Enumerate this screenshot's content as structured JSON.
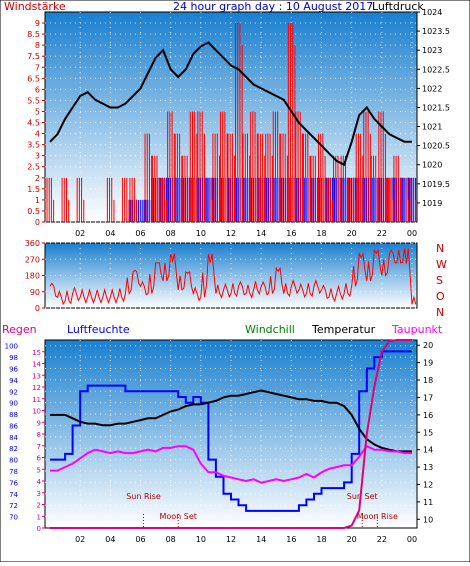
{
  "colors": {
    "wind": "#ff0000",
    "pressure": "#000000",
    "direction": "#ff0000",
    "gust_blue": "#0000ff",
    "rain_title": "#e0007a",
    "humidity": "#0000ff",
    "windchill": "#008000",
    "temperature": "#000000",
    "dewpoint": "#ff00ff",
    "sky_top": "#1a7fcf",
    "sky_bottom": "#ffffff",
    "astro": "#b00000",
    "axis_red": "#cc0000"
  },
  "chart_data": [
    {
      "type": "line",
      "title": "24 hour graph day : 10 August 2017",
      "left_label": "Windstärke",
      "right_label": "Luftdruck",
      "x_ticks": [
        "02",
        "04",
        "06",
        "08",
        "10",
        "12",
        "14",
        "16",
        "18",
        "20",
        "22",
        "00"
      ],
      "ylim_left": [
        0,
        9.5
      ],
      "y_ticks_left": [
        "0",
        "0.5",
        "1",
        "1.5",
        "2",
        "2.5",
        "3",
        "3.5",
        "4",
        "4.5",
        "5",
        "5.5",
        "6",
        "6.5",
        "7",
        "7.5",
        "8",
        "8.5",
        "9"
      ],
      "ylim_right": [
        1018.5,
        1024
      ],
      "y_ticks_right": [
        "1019",
        "1019.5",
        "1020",
        "1020.5",
        "1021",
        "1021.5",
        "1022",
        "1022.5",
        "1023",
        "1023.5",
        "1024"
      ],
      "series": [
        {
          "axis": "right",
          "x": [
            0,
            0.5,
            1,
            1.5,
            2,
            2.5,
            3,
            3.5,
            4,
            4.5,
            5,
            5.5,
            6,
            6.5,
            7,
            7.5,
            8,
            8.5,
            9,
            9.5,
            10,
            10.5,
            11,
            11.5,
            12,
            12.5,
            13,
            13.5,
            14,
            14.5,
            15,
            15.5,
            16,
            16.5,
            17,
            17.5,
            18,
            18.5,
            19,
            19.5,
            20,
            20.5,
            21,
            21.5,
            22,
            22.5,
            23,
            23.5,
            24
          ],
          "values": [
            1020.6,
            1020.8,
            1021.2,
            1021.5,
            1021.8,
            1021.9,
            1021.7,
            1021.6,
            1021.5,
            1021.5,
            1021.6,
            1021.8,
            1022.0,
            1022.4,
            1022.8,
            1023.0,
            1022.5,
            1022.3,
            1022.5,
            1022.9,
            1023.1,
            1023.2,
            1023.0,
            1022.8,
            1022.6,
            1022.5,
            1022.3,
            1022.1,
            1022.0,
            1021.9,
            1021.8,
            1021.7,
            1021.4,
            1021.1,
            1020.9,
            1020.7,
            1020.5,
            1020.3,
            1020.1,
            1020.0,
            1020.6,
            1021.3,
            1021.5,
            1021.2,
            1021.0,
            1020.8,
            1020.7,
            1020.6,
            1020.6
          ]
        },
        {
          "axis": "left",
          "type": "bar",
          "x": [
            0,
            0.5,
            1,
            1.5,
            2,
            2.5,
            3,
            3.5,
            4,
            4.5,
            5,
            5.5,
            6,
            6.5,
            7,
            7.5,
            8,
            8.5,
            9,
            9.5,
            10,
            10.5,
            11,
            11.5,
            12,
            12.5,
            13,
            13.5,
            14,
            14.5,
            15,
            15.5,
            16,
            16.5,
            17,
            17.5,
            18,
            18.5,
            19,
            19.5,
            20,
            20.5,
            21,
            21.5,
            22,
            22.5,
            23,
            23.5,
            24
          ],
          "values": [
            2,
            0,
            2,
            0,
            2,
            0,
            0,
            0,
            2,
            0,
            2,
            2,
            0,
            4,
            3,
            2,
            5,
            4,
            3,
            5,
            5,
            2,
            4,
            5,
            4,
            9,
            4,
            5,
            4,
            4,
            5,
            4,
            9,
            5,
            4,
            3,
            4,
            2,
            3,
            3,
            2,
            4,
            5,
            3,
            5,
            2,
            3,
            2,
            2
          ]
        },
        {
          "axis": "left",
          "type": "bar",
          "x": [
            0,
            0.5,
            1,
            1.5,
            2,
            2.5,
            3,
            3.5,
            4,
            4.5,
            5,
            5.5,
            6,
            6.5,
            7,
            7.5,
            8,
            8.5,
            9,
            9.5,
            10,
            10.5,
            11,
            11.5,
            12,
            12.5,
            13,
            13.5,
            14,
            14.5,
            15,
            15.5,
            16,
            16.5,
            17,
            17.5,
            18,
            18.5,
            19,
            19.5,
            20,
            20.5,
            21,
            21.5,
            22,
            22.5,
            23,
            23.5,
            24
          ],
          "values": [
            0,
            0,
            0,
            0,
            0,
            0,
            0,
            0,
            0,
            0,
            0,
            1,
            1,
            1,
            2,
            2,
            2,
            2,
            2,
            2,
            2,
            2,
            2,
            2,
            2,
            2,
            2,
            2,
            2,
            2,
            2,
            2,
            2,
            2,
            2,
            2,
            2,
            2,
            2,
            2,
            2,
            2,
            2,
            2,
            2,
            2,
            2,
            2,
            2
          ]
        }
      ]
    },
    {
      "type": "line",
      "ylim": [
        0,
        360
      ],
      "y_ticks": [
        "0",
        "90",
        "180",
        "270",
        "360"
      ],
      "right_letters": [
        "N",
        "W",
        "S",
        "O",
        "N"
      ],
      "x_ticks": [
        "02",
        "04",
        "06",
        "08",
        "10",
        "12",
        "14",
        "16",
        "18",
        "20",
        "22",
        "00"
      ],
      "series": [
        {
          "x": [
            0,
            0.5,
            1,
            1.5,
            2,
            2.5,
            3,
            3.5,
            4,
            4.5,
            5,
            5.5,
            6,
            6.5,
            7,
            7.5,
            8,
            8.5,
            9,
            9.5,
            10,
            10.5,
            11,
            11.5,
            12,
            12.5,
            13,
            13.5,
            14,
            14.5,
            15,
            15.5,
            16,
            16.5,
            17,
            17.5,
            18,
            18.5,
            19,
            19.5,
            20,
            20.5,
            21,
            21.5,
            22,
            22.5,
            23,
            23.5,
            24
          ],
          "values": [
            120,
            60,
            40,
            80,
            60,
            60,
            60,
            60,
            60,
            60,
            80,
            200,
            120,
            80,
            250,
            150,
            300,
            100,
            200,
            80,
            60,
            300,
            80,
            100,
            80,
            120,
            80,
            100,
            120,
            80,
            220,
            80,
            120,
            100,
            80,
            120,
            100,
            60,
            80,
            80,
            120,
            300,
            150,
            320,
            180,
            300,
            250,
            330,
            20
          ]
        }
      ]
    },
    {
      "type": "line",
      "labels_top": {
        "rain": "Regen",
        "humidity": "Luftfeuchte",
        "windchill": "Windchill",
        "temperature": "Temperatur",
        "dewpoint": "Taupunkt"
      },
      "x_ticks": [
        "02",
        "04",
        "06",
        "08",
        "10",
        "12",
        "14",
        "16",
        "18",
        "20",
        "22",
        "00"
      ],
      "ylim_humidity": [
        68,
        101
      ],
      "y_ticks_humidity": [
        "70",
        "72",
        "74",
        "76",
        "78",
        "80",
        "82",
        "84",
        "86",
        "88",
        "90",
        "92",
        "94",
        "96",
        "98",
        "100"
      ],
      "ylim_rain": [
        0,
        16
      ],
      "y_ticks_rain": [
        "0",
        "1",
        "2",
        "3",
        "4",
        "5",
        "6",
        "7",
        "8",
        "9",
        "10",
        "11",
        "12",
        "13",
        "14",
        "15"
      ],
      "ylim_temp": [
        9.5,
        20.3
      ],
      "y_ticks_temp": [
        "10",
        "11",
        "12",
        "13",
        "14",
        "15",
        "16",
        "17",
        "18",
        "19",
        "20"
      ],
      "annotations": [
        {
          "label": "Sun Rise",
          "x": 6.2
        },
        {
          "label": "Moon Set",
          "x": 8.5
        },
        {
          "label": "Sun Set",
          "x": 20.7
        },
        {
          "label": "Moon Rise",
          "x": 21.7
        }
      ],
      "series": [
        {
          "name": "Luftfeuchte",
          "axis": "humidity",
          "x": [
            0,
            0.5,
            1,
            1.5,
            2,
            2.5,
            3,
            3.5,
            4,
            4.5,
            5,
            5.5,
            6,
            6.5,
            7,
            7.5,
            8,
            8.5,
            9,
            9.5,
            10,
            10.5,
            11,
            11.5,
            12,
            12.5,
            13,
            13.5,
            14,
            14.5,
            15,
            15.5,
            16,
            16.5,
            17,
            17.5,
            18,
            18.5,
            19,
            19.5,
            20,
            20.5,
            21,
            21.5,
            22,
            22.5,
            23,
            23.5,
            24
          ],
          "values": [
            80,
            80,
            81,
            86,
            92,
            93,
            93,
            93,
            93,
            93,
            92,
            92,
            92,
            92,
            92,
            92,
            92,
            91,
            90,
            91,
            90,
            80,
            77,
            74,
            73,
            72,
            71,
            71,
            71,
            71,
            71,
            71,
            71,
            72,
            73,
            74,
            75,
            75,
            75,
            76,
            81,
            92,
            96,
            98,
            99,
            99,
            99,
            99,
            99
          ]
        },
        {
          "name": "Temperatur",
          "axis": "temp",
          "x": [
            0,
            0.5,
            1,
            1.5,
            2,
            2.5,
            3,
            3.5,
            4,
            4.5,
            5,
            5.5,
            6,
            6.5,
            7,
            7.5,
            8,
            8.5,
            9,
            9.5,
            10,
            10.5,
            11,
            11.5,
            12,
            12.5,
            13,
            13.5,
            14,
            14.5,
            15,
            15.5,
            16,
            16.5,
            17,
            17.5,
            18,
            18.5,
            19,
            19.5,
            20,
            20.5,
            21,
            21.5,
            22,
            22.5,
            23,
            23.5,
            24
          ],
          "values": [
            16.0,
            16.0,
            16.0,
            15.8,
            15.6,
            15.5,
            15.5,
            15.4,
            15.4,
            15.5,
            15.5,
            15.6,
            15.7,
            15.8,
            15.8,
            16.0,
            16.2,
            16.3,
            16.5,
            16.6,
            16.6,
            16.7,
            16.8,
            17.0,
            17.1,
            17.1,
            17.2,
            17.3,
            17.4,
            17.3,
            17.2,
            17.1,
            17.0,
            16.9,
            16.9,
            16.8,
            16.8,
            16.7,
            16.7,
            16.5,
            16.0,
            15.2,
            14.6,
            14.3,
            14.1,
            14.0,
            13.9,
            13.9,
            13.9
          ]
        },
        {
          "name": "Taupunkt",
          "axis": "temp",
          "x": [
            0,
            0.5,
            1,
            1.5,
            2,
            2.5,
            3,
            3.5,
            4,
            4.5,
            5,
            5.5,
            6,
            6.5,
            7,
            7.5,
            8,
            8.5,
            9,
            9.5,
            10,
            10.5,
            11,
            11.5,
            12,
            12.5,
            13,
            13.5,
            14,
            14.5,
            15,
            15.5,
            16,
            16.5,
            17,
            17.5,
            18,
            18.5,
            19,
            19.5,
            20,
            20.5,
            21,
            21.5,
            22,
            22.5,
            23,
            23.5,
            24
          ],
          "values": [
            12.8,
            12.8,
            13.0,
            13.2,
            13.5,
            13.8,
            14.0,
            13.9,
            13.8,
            13.9,
            13.8,
            13.8,
            13.9,
            14.0,
            13.9,
            14.1,
            14.1,
            14.2,
            14.2,
            14.0,
            13.2,
            12.7,
            12.7,
            12.5,
            12.4,
            12.3,
            12.2,
            12.3,
            12.1,
            12.2,
            12.3,
            12.2,
            12.3,
            12.4,
            12.6,
            12.4,
            12.7,
            12.9,
            13.0,
            13.1,
            13.1,
            13.6,
            14.2,
            14.0,
            14.0,
            13.9,
            13.9,
            13.8,
            13.8
          ]
        },
        {
          "name": "Regen",
          "axis": "rain",
          "x": [
            0,
            10,
            19.5,
            20,
            20.5,
            21,
            21.5,
            22,
            22.5,
            23,
            23.5,
            24
          ],
          "values": [
            0,
            0,
            0,
            0.2,
            1.5,
            8,
            12,
            15,
            15.9,
            16,
            16,
            16
          ]
        }
      ]
    }
  ]
}
